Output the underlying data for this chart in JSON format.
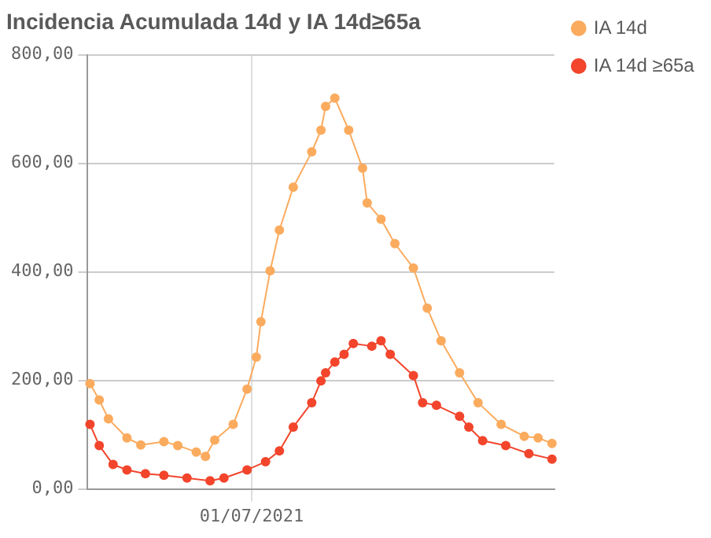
{
  "chart_data": {
    "type": "line",
    "title": "Incidencia Acumulada 14d y IA 14d≥65a",
    "categories": [
      null,
      null,
      null,
      null,
      null,
      null,
      null,
      null,
      null,
      null,
      null,
      null,
      null,
      null,
      null,
      null,
      null,
      null,
      null,
      null,
      null,
      null,
      null,
      null,
      null,
      null,
      null,
      null,
      null,
      null,
      null,
      null,
      null,
      null,
      null,
      "01/07/2021",
      null,
      null,
      null,
      null,
      null,
      null,
      null,
      null,
      null,
      null,
      null,
      null,
      null,
      null,
      null,
      null,
      null,
      null,
      null,
      null,
      null,
      null,
      null,
      null,
      null,
      null,
      null,
      null,
      null,
      null,
      null,
      null,
      null,
      null,
      null,
      null,
      null,
      null,
      null,
      null,
      null,
      null,
      null,
      null,
      null,
      null,
      null,
      null,
      null,
      null,
      null,
      null,
      null,
      null,
      null,
      null,
      null,
      null,
      null,
      null,
      null,
      null,
      null,
      null,
      null
    ],
    "ylim": [
      0,
      800
    ],
    "yticks": [
      {
        "value": 0,
        "label": "0,00"
      },
      {
        "value": 200,
        "label": "200,00"
      },
      {
        "value": 400,
        "label": "400,00"
      },
      {
        "value": 600,
        "label": "600,00"
      },
      {
        "value": 800,
        "label": "800,00"
      }
    ],
    "grid": true,
    "legend": "right",
    "marker": "circle",
    "line_style": "solid",
    "series": [
      {
        "name": "IA 14d",
        "color": "#fbab5e",
        "values": [
          194,
          null,
          164,
          null,
          129,
          null,
          null,
          null,
          94,
          null,
          null,
          81,
          null,
          null,
          null,
          null,
          87,
          null,
          null,
          80,
          null,
          null,
          null,
          68,
          null,
          60,
          null,
          90,
          null,
          null,
          null,
          119,
          null,
          null,
          184,
          null,
          243,
          308,
          null,
          402,
          null,
          477,
          null,
          null,
          556,
          null,
          null,
          null,
          621,
          null,
          661,
          705,
          null,
          720,
          null,
          null,
          661,
          null,
          null,
          591,
          527,
          null,
          null,
          497,
          null,
          null,
          452,
          null,
          null,
          null,
          407,
          null,
          null,
          333,
          null,
          null,
          273,
          null,
          null,
          null,
          214,
          null,
          null,
          null,
          159,
          null,
          null,
          null,
          null,
          119,
          null,
          null,
          null,
          null,
          97,
          null,
          null,
          94,
          null,
          null,
          84
        ]
      },
      {
        "name": "IA 14d ≥65a",
        "color": "#f2452c",
        "values": [
          119,
          null,
          80,
          null,
          null,
          45,
          null,
          null,
          35,
          null,
          null,
          null,
          28,
          null,
          null,
          null,
          25,
          null,
          null,
          null,
          null,
          20,
          null,
          null,
          null,
          null,
          15,
          null,
          null,
          20,
          null,
          null,
          null,
          null,
          35,
          null,
          null,
          null,
          50,
          null,
          null,
          70,
          null,
          null,
          114,
          null,
          null,
          null,
          159,
          null,
          199,
          214,
          null,
          234,
          null,
          248,
          null,
          268,
          null,
          null,
          null,
          263,
          null,
          273,
          null,
          248,
          null,
          null,
          null,
          null,
          209,
          null,
          159,
          null,
          null,
          154,
          null,
          null,
          null,
          null,
          134,
          null,
          114,
          null,
          null,
          89,
          null,
          null,
          null,
          null,
          80,
          null,
          null,
          null,
          null,
          65,
          null,
          null,
          null,
          null,
          55
        ]
      }
    ]
  }
}
